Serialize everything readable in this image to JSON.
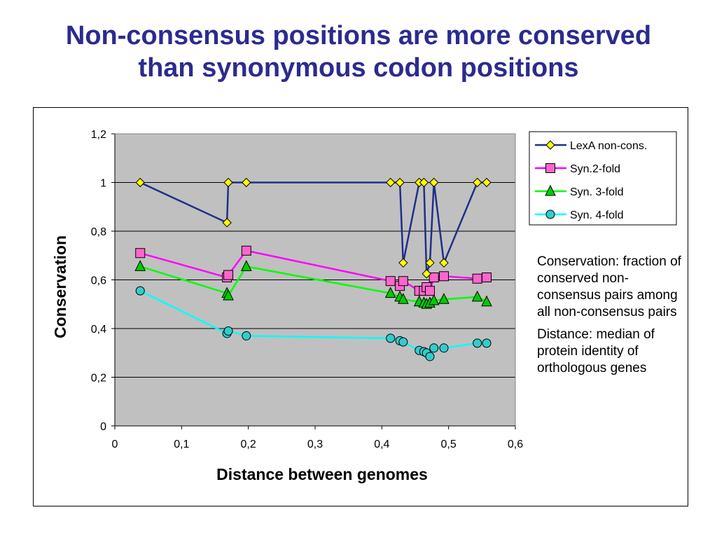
{
  "slide": {
    "title_line1": "Non-consensus positions are more conserved",
    "title_line2": "than synonymous codon positions"
  },
  "notes": {
    "conservation_term": "Conservation",
    "conservation_def": ": fraction of conserved non-consensus pairs among all non-consensus pairs",
    "distance_term": "Distance",
    "distance_def": ": median of protein identity of orthologous genes"
  },
  "colors": {
    "plot_bg": "#c0c0c0",
    "title": "#2b2b8f"
  },
  "chart_data": {
    "type": "line",
    "xlabel": "Distance between genomes",
    "ylabel": "Conservation",
    "xlim": [
      0,
      0.6
    ],
    "ylim": [
      0,
      1.2
    ],
    "x_ticks": [
      "0",
      "0,1",
      "0,2",
      "0,3",
      "0,4",
      "0,5",
      "0,6"
    ],
    "y_ticks": [
      "0",
      "0,2",
      "0,4",
      "0,6",
      "0,8",
      "1",
      "1,2"
    ],
    "grid": "horizontal",
    "legend_position": "top-right",
    "series": [
      {
        "name": "LexA non-cons.",
        "color": "#1f2f8a",
        "marker": "diamond",
        "marker_fill": "#ffff00",
        "points": [
          [
            0.038,
            1.0
          ],
          [
            0.168,
            0.835
          ],
          [
            0.17,
            1.0
          ],
          [
            0.197,
            1.0
          ],
          [
            0.413,
            1.0
          ],
          [
            0.427,
            1.0
          ],
          [
            0.432,
            0.67
          ],
          [
            0.456,
            1.0
          ],
          [
            0.463,
            1.0
          ],
          [
            0.467,
            0.625
          ],
          [
            0.472,
            0.67
          ],
          [
            0.478,
            1.0
          ],
          [
            0.493,
            0.67
          ],
          [
            0.543,
            1.0
          ],
          [
            0.557,
            1.0
          ]
        ]
      },
      {
        "name": "Syn.2-fold",
        "color": "#ff00ff",
        "marker": "square",
        "marker_fill": "#ff66cc",
        "points": [
          [
            0.038,
            0.71
          ],
          [
            0.168,
            0.61
          ],
          [
            0.17,
            0.62
          ],
          [
            0.197,
            0.72
          ],
          [
            0.413,
            0.595
          ],
          [
            0.427,
            0.575
          ],
          [
            0.432,
            0.595
          ],
          [
            0.456,
            0.555
          ],
          [
            0.463,
            0.555
          ],
          [
            0.467,
            0.57
          ],
          [
            0.472,
            0.555
          ],
          [
            0.478,
            0.61
          ],
          [
            0.493,
            0.615
          ],
          [
            0.543,
            0.605
          ],
          [
            0.557,
            0.61
          ]
        ]
      },
      {
        "name": "Syn. 3-fold",
        "color": "#00ff00",
        "marker": "triangle",
        "marker_fill": "#00cc00",
        "points": [
          [
            0.038,
            0.655
          ],
          [
            0.168,
            0.545
          ],
          [
            0.17,
            0.535
          ],
          [
            0.197,
            0.655
          ],
          [
            0.413,
            0.545
          ],
          [
            0.427,
            0.53
          ],
          [
            0.432,
            0.52
          ],
          [
            0.456,
            0.51
          ],
          [
            0.463,
            0.505
          ],
          [
            0.467,
            0.5
          ],
          [
            0.472,
            0.505
          ],
          [
            0.478,
            0.515
          ],
          [
            0.493,
            0.52
          ],
          [
            0.543,
            0.53
          ],
          [
            0.557,
            0.51
          ]
        ]
      },
      {
        "name": "Syn. 4-fold",
        "color": "#00ffff",
        "marker": "circle",
        "marker_fill": "#33cccc",
        "points": [
          [
            0.038,
            0.555
          ],
          [
            0.168,
            0.38
          ],
          [
            0.17,
            0.39
          ],
          [
            0.197,
            0.37
          ],
          [
            0.413,
            0.36
          ],
          [
            0.427,
            0.35
          ],
          [
            0.432,
            0.345
          ],
          [
            0.456,
            0.31
          ],
          [
            0.463,
            0.305
          ],
          [
            0.467,
            0.3
          ],
          [
            0.472,
            0.285
          ],
          [
            0.478,
            0.32
          ],
          [
            0.493,
            0.32
          ],
          [
            0.543,
            0.34
          ],
          [
            0.557,
            0.34
          ]
        ]
      }
    ]
  }
}
